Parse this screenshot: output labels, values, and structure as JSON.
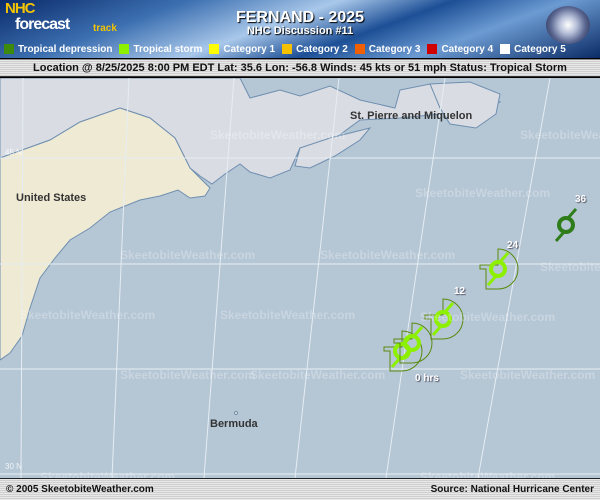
{
  "header": {
    "logo": {
      "nhc": "NHC",
      "forecast": "forecast",
      "track": "track"
    },
    "title": "FERNAND - 2025",
    "subtitle": "NHC Discussion #11",
    "storm_image": "satellite-hurricane-image"
  },
  "legend": [
    {
      "label": "Tropical depression",
      "color": "#3d8a0c"
    },
    {
      "label": "Tropical storm",
      "color": "#8cf000"
    },
    {
      "label": "Category 1",
      "color": "#ffff00"
    },
    {
      "label": "Category 2",
      "color": "#f5c000"
    },
    {
      "label": "Category 3",
      "color": "#f06000"
    },
    {
      "label": "Category 4",
      "color": "#d00000"
    },
    {
      "label": "Category 5",
      "color": "#ffffff"
    }
  ],
  "status": "Location @ 8/25/2025 8:00 PM EDT  Lat: 35.6 Lon: -56.8   Winds: 45 kts or 51 mph  Status: Tropical Storm",
  "map": {
    "places": [
      "United States",
      "St. Pierre and Miquelon",
      "Bermuda"
    ],
    "lat_labels": [
      "45 N",
      "30 N"
    ],
    "watermark": "SkeetobiteWeather.com",
    "forecast_hours": [
      "0 hrs",
      "12",
      "24",
      "36"
    ]
  },
  "footer": {
    "copyright": "© 2005 SkeetobiteWeather.com",
    "source": "Source: National Hurricane Center"
  }
}
